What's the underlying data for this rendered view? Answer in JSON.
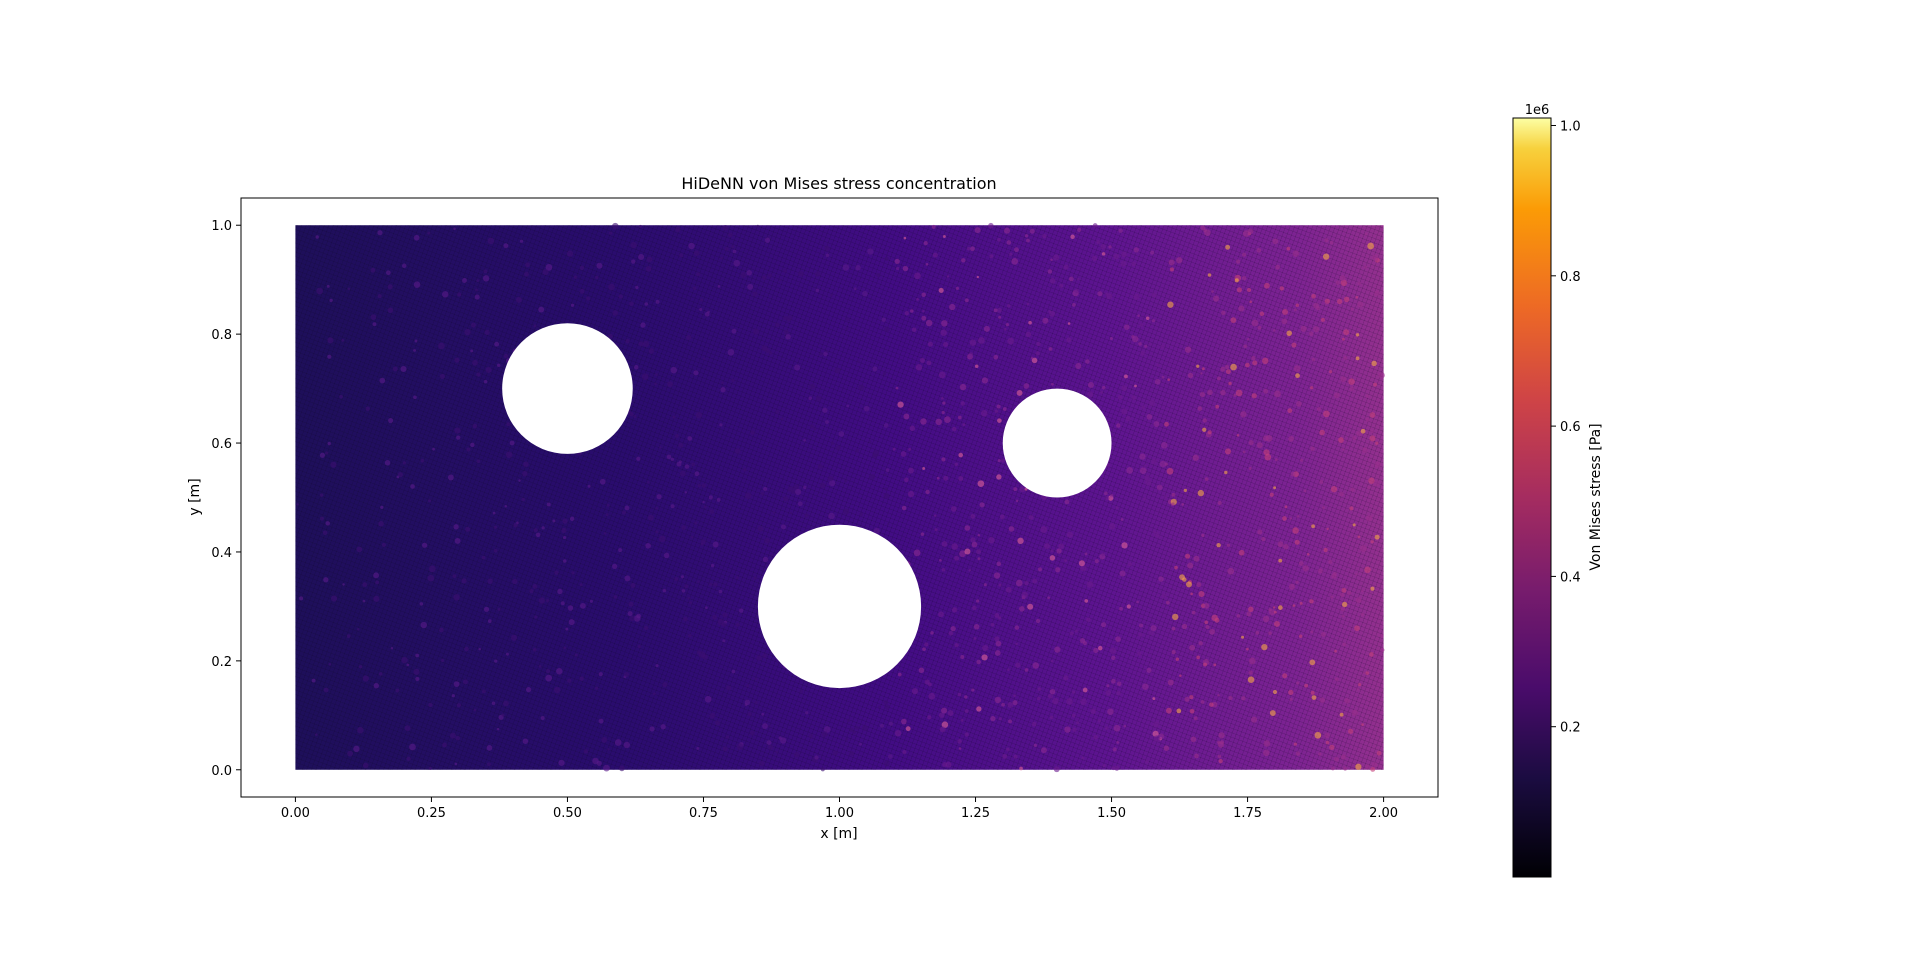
{
  "chart_data": {
    "type": "heatmap",
    "title": "HiDeNN von Mises stress concentration",
    "xlabel": "x [m]",
    "ylabel": "y [m]",
    "xlim": [
      -0.1,
      2.1
    ],
    "ylim": [
      -0.05,
      1.05
    ],
    "xticks": [
      0.0,
      0.25,
      0.5,
      0.75,
      1.0,
      1.25,
      1.5,
      1.75,
      2.0
    ],
    "xtick_labels": [
      "0.00",
      "0.25",
      "0.50",
      "0.75",
      "1.00",
      "1.25",
      "1.50",
      "1.75",
      "2.00"
    ],
    "yticks": [
      0.0,
      0.2,
      0.4,
      0.6,
      0.8,
      1.0
    ],
    "ytick_labels": [
      "0.0",
      "0.2",
      "0.4",
      "0.6",
      "0.8",
      "1.0"
    ],
    "domain": {
      "x": [
        0.0,
        2.0
      ],
      "y": [
        0.0,
        1.0
      ]
    },
    "holes": [
      {
        "cx": 0.5,
        "cy": 0.7,
        "r": 0.12
      },
      {
        "cx": 1.0,
        "cy": 0.3,
        "r": 0.15
      },
      {
        "cx": 1.4,
        "cy": 0.6,
        "r": 0.1
      }
    ],
    "stress_field_description": "stress increases from left (~0.15e6 Pa) to right (~0.45e6 Pa); hot spots up to ~1.0e6 Pa near right edge and around holes",
    "colorbar": {
      "label": "Von Mises stress [Pa]",
      "colormap": "plasma",
      "offset_text": "1e6",
      "range": [
        0.0,
        1.01
      ],
      "ticks": [
        0.2,
        0.4,
        0.6,
        0.8,
        1.0
      ],
      "tick_labels": [
        "0.2",
        "0.4",
        "0.6",
        "0.8",
        "1.0"
      ]
    },
    "grid": false,
    "legend": "none"
  }
}
